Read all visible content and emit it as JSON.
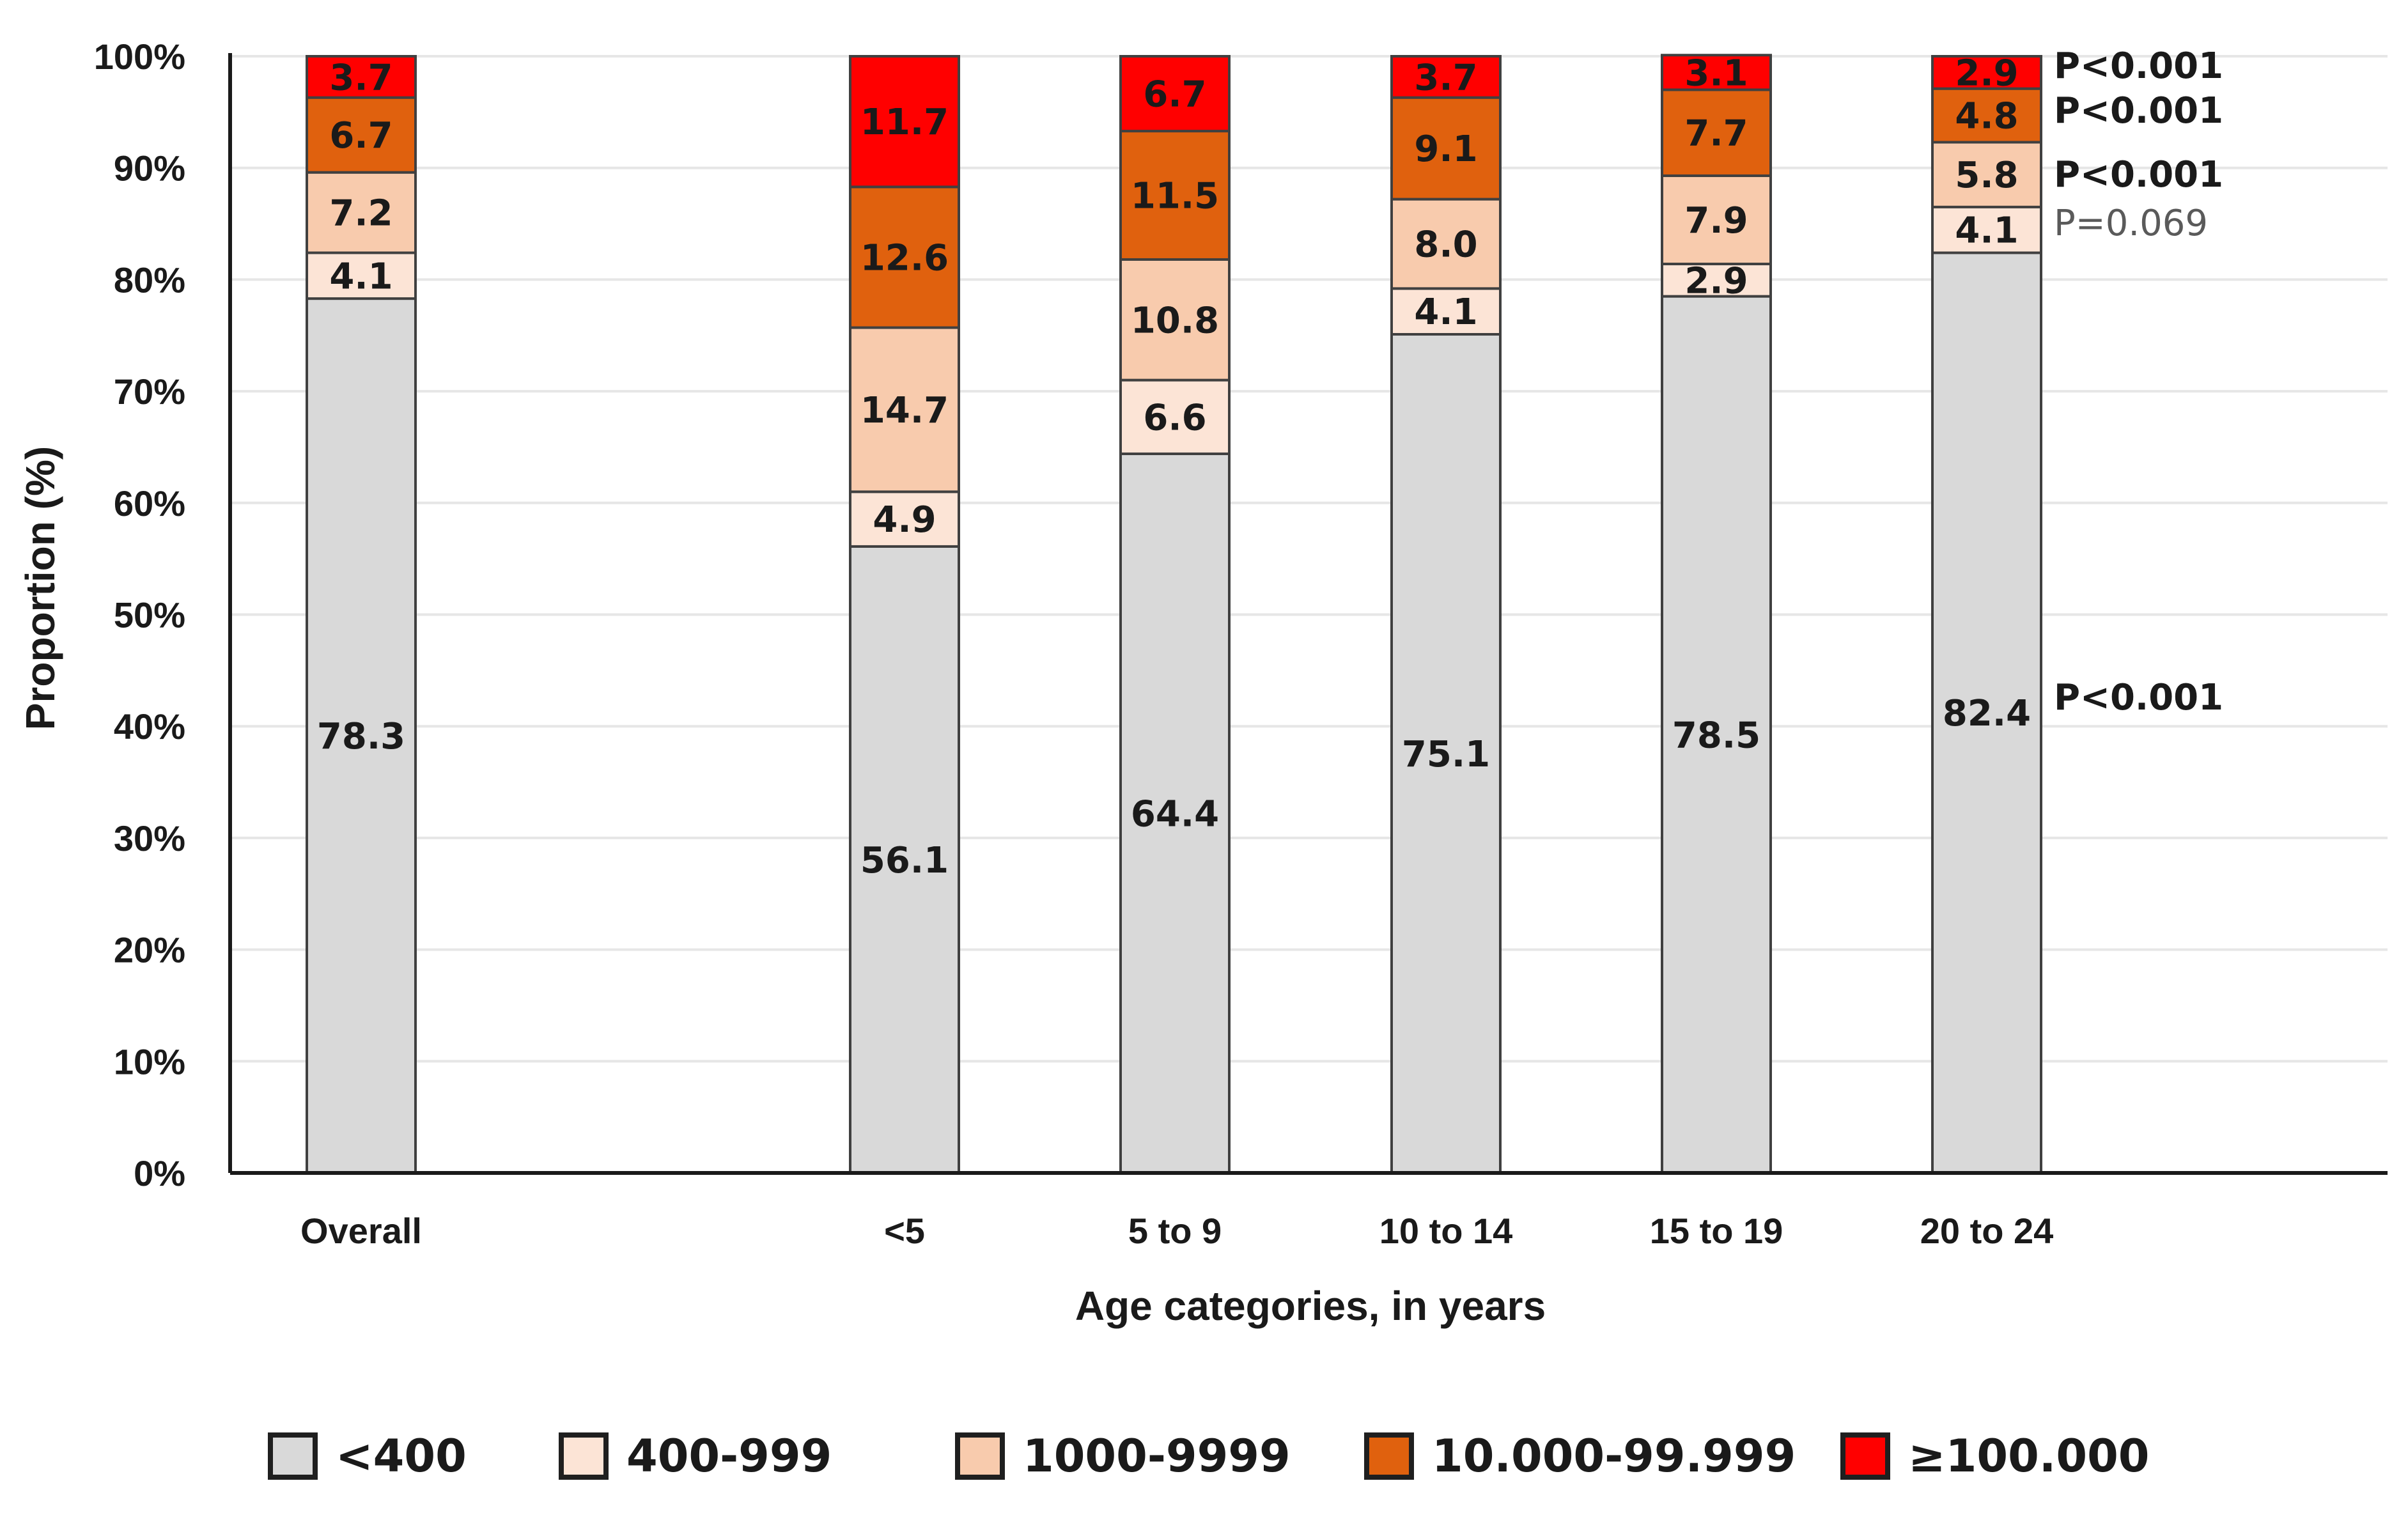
{
  "chart_data": {
    "type": "stacked-bar",
    "title": "",
    "xlabel": "Age categories, in years",
    "ylabel": "Proportion (%)",
    "ylim": [
      0,
      100
    ],
    "y_ticks": [
      "0%",
      "10%",
      "20%",
      "30%",
      "40%",
      "50%",
      "60%",
      "70%",
      "80%",
      "90%",
      "100%"
    ],
    "grid": true,
    "legend_position": "bottom",
    "categories": [
      "Overall",
      "<5",
      "5 to 9",
      "10 to 14",
      "15 to 19",
      "20 to 24"
    ],
    "series": [
      {
        "name": "<400",
        "color": "#d9d9d9",
        "values": [
          78.3,
          56.1,
          64.4,
          75.1,
          78.5,
          82.4
        ],
        "labels": [
          "78.3",
          "56.1",
          "64.4",
          "75.1",
          "78.5",
          "82.4"
        ]
      },
      {
        "name": "400-999",
        "color": "#fce4d6",
        "values": [
          4.1,
          4.9,
          6.6,
          4.1,
          2.9,
          4.1
        ],
        "labels": [
          "4.1",
          "4.9",
          "6.6",
          "4.1",
          "2.9",
          "4.1"
        ]
      },
      {
        "name": "1000-9999",
        "color": "#f8cbad",
        "values": [
          7.2,
          14.7,
          10.8,
          8.0,
          7.9,
          5.8
        ],
        "labels": [
          "7.2",
          "14.7",
          "10.8",
          "8.0",
          "7.9",
          "5.8"
        ]
      },
      {
        "name": "10.000-99.999",
        "color": "#e0610e",
        "values": [
          6.7,
          12.6,
          11.5,
          9.1,
          7.7,
          4.8
        ],
        "labels": [
          "6.7",
          "12.6",
          "11.5",
          "9.1",
          "7.7",
          "4.8"
        ]
      },
      {
        "name": "≥100.000",
        "color": "#ff0000",
        "values": [
          3.7,
          11.7,
          6.7,
          3.7,
          3.1,
          2.9
        ],
        "labels": [
          "3.7",
          "11.7",
          "6.7",
          "3.7",
          "3.1",
          "2.9"
        ]
      }
    ],
    "annotations": [
      {
        "series": "<400",
        "text": "P<0.001",
        "style": "bold"
      },
      {
        "series": "400-999",
        "text": "P=0.069",
        "style": "muted"
      },
      {
        "series": "1000-9999",
        "text": "P<0.001",
        "style": "bold"
      },
      {
        "series": "10.000-99.999",
        "text": "P<0.001",
        "style": "bold"
      },
      {
        "series": "≥100.000",
        "text": "P<0.001",
        "style": "bold"
      }
    ]
  }
}
